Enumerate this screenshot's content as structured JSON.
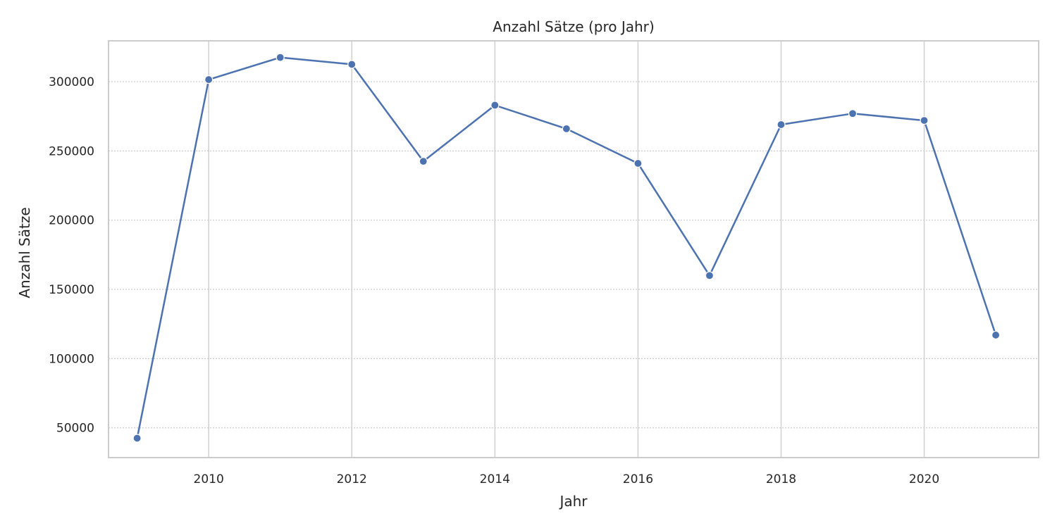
{
  "chart_data": {
    "type": "line",
    "title": "Anzahl Sätze (pro Jahr)",
    "xlabel": "Jahr",
    "ylabel": "Anzahl Sätze",
    "x_ticks": [
      "2010",
      "2012",
      "2014",
      "2016",
      "2018",
      "2020"
    ],
    "y_ticks": [
      "50000",
      "100000",
      "150000",
      "200000",
      "250000",
      "300000"
    ],
    "xlim": [
      2008.6,
      2021.6
    ],
    "ylim": [
      28500,
      329500
    ],
    "grid": true,
    "series": [
      {
        "color": "#4c72b0",
        "x": [
          2009,
          2010,
          2011,
          2012,
          2013,
          2014,
          2015,
          2016,
          2017,
          2018,
          2019,
          2020,
          2021
        ],
        "y": [
          42500,
          301500,
          317500,
          312500,
          242500,
          283000,
          266000,
          241000,
          160000,
          269000,
          277000,
          272000,
          117000
        ]
      }
    ]
  }
}
